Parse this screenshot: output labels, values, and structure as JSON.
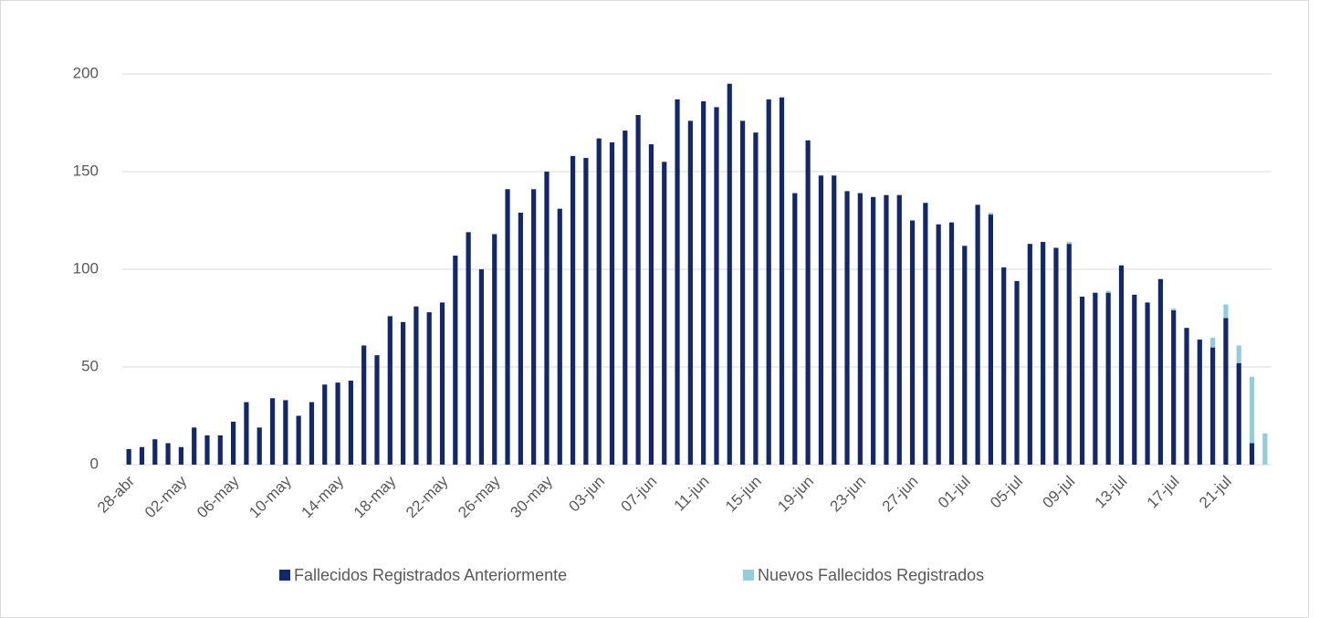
{
  "chart_data": {
    "type": "stacked-bar",
    "categories": [
      "28-abr",
      null,
      null,
      null,
      "02-may",
      null,
      null,
      null,
      "06-may",
      null,
      null,
      null,
      "10-may",
      null,
      null,
      null,
      "14-may",
      null,
      null,
      null,
      "18-may",
      null,
      null,
      null,
      "22-may",
      null,
      null,
      null,
      "26-may",
      null,
      null,
      null,
      "30-may",
      null,
      null,
      null,
      "03-jun",
      null,
      null,
      null,
      "07-jun",
      null,
      null,
      null,
      "11-jun",
      null,
      null,
      null,
      "15-jun",
      null,
      null,
      null,
      "19-jun",
      null,
      null,
      null,
      "23-jun",
      null,
      null,
      null,
      "27-jun",
      null,
      null,
      null,
      "01-jul",
      null,
      null,
      null,
      "05-jul",
      null,
      null,
      null,
      "09-jul",
      null,
      null,
      null,
      "13-jul",
      null,
      null,
      null,
      "17-jul",
      null,
      null,
      null,
      "21-jul",
      null,
      null,
      null
    ],
    "series": [
      {
        "name": "Fallecidos Registrados Anteriormente",
        "color": "#13276b",
        "values": [
          8,
          9,
          13,
          11,
          9,
          19,
          15,
          15,
          22,
          32,
          19,
          34,
          33,
          25,
          32,
          41,
          42,
          43,
          61,
          56,
          76,
          73,
          81,
          78,
          83,
          107,
          119,
          100,
          118,
          141,
          129,
          141,
          150,
          131,
          158,
          157,
          167,
          165,
          171,
          179,
          164,
          155,
          187,
          176,
          186,
          183,
          195,
          176,
          170,
          187,
          188,
          139,
          166,
          148,
          148,
          140,
          139,
          137,
          138,
          138,
          125,
          134,
          123,
          124,
          112,
          133,
          128,
          101,
          94,
          113,
          114,
          111,
          113,
          86,
          88,
          88,
          102,
          87,
          83,
          95,
          79,
          70,
          64,
          60,
          75,
          52,
          11,
          0
        ]
      },
      {
        "name": "Nuevos Fallecidos Registrados",
        "color": "#92cddc",
        "values": [
          0,
          0,
          0,
          0,
          0,
          0,
          0,
          0,
          0,
          0,
          0,
          0,
          0,
          0,
          0,
          0,
          0,
          0,
          0,
          0,
          0,
          0,
          0,
          0,
          0,
          0,
          0,
          0,
          0,
          0,
          0,
          0,
          0,
          0,
          0,
          0,
          0,
          0,
          0,
          0,
          0,
          0,
          0,
          0,
          0,
          0,
          0,
          0,
          0,
          0,
          0,
          0,
          0,
          0,
          0,
          0,
          0,
          0,
          0,
          0,
          0,
          0,
          0,
          0,
          0,
          0,
          1,
          0,
          0,
          0,
          0,
          0,
          1,
          0,
          0,
          1,
          0,
          0,
          0,
          0,
          1,
          0,
          0,
          5,
          7,
          9,
          34,
          16
        ]
      }
    ],
    "ylim": [
      0,
      200
    ],
    "yticks": [
      0,
      50,
      100,
      150,
      200
    ],
    "grid": true,
    "legend": "bottom"
  }
}
